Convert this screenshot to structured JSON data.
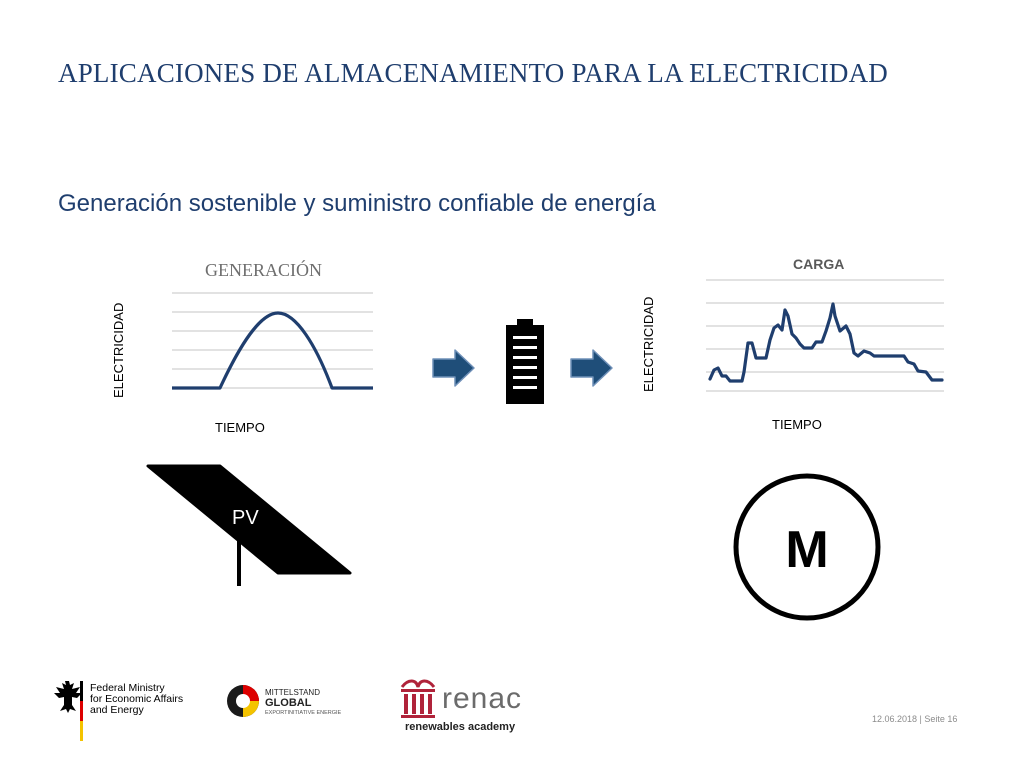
{
  "slide": {
    "title": "APLICACIONES DE ALMACENAMIENTO PARA LA ELECTRICIDAD",
    "subtitle": "Generación sostenible y suministro confiable de energía"
  },
  "generation": {
    "title": "GENERACIÓN",
    "ylabel": "ELECTRICIDAD",
    "xlabel": "TIEMPO"
  },
  "load": {
    "title": "CARGA",
    "ylabel": "ELECTRICIDAD",
    "xlabel": "TIEMPO"
  },
  "pv": {
    "label": "PV"
  },
  "motor": {
    "label": "M"
  },
  "footer": {
    "date_page": "12.06.2018 | Seite 16",
    "bmwi": [
      "Federal Ministry",
      "for Economic Affairs",
      "and Energy"
    ],
    "mittelstand": [
      "MITTELSTAND",
      "GLOBAL",
      "EXPORTINITIATIVE ENERGIE"
    ],
    "renac": {
      "name": "renac",
      "tagline": "renewables academy"
    }
  },
  "colors": {
    "title": "#1f3e6e",
    "curve": "#1f3e6e",
    "arrow_fill": "#1f4e79",
    "arrow_stroke": "#6f90b8",
    "gridline": "#d9d9d9",
    "renac_red": "#b0233a"
  },
  "icons": [
    "arrow-right-icon",
    "battery-icon",
    "solar-panel-icon",
    "motor-icon",
    "eagle-icon"
  ]
}
